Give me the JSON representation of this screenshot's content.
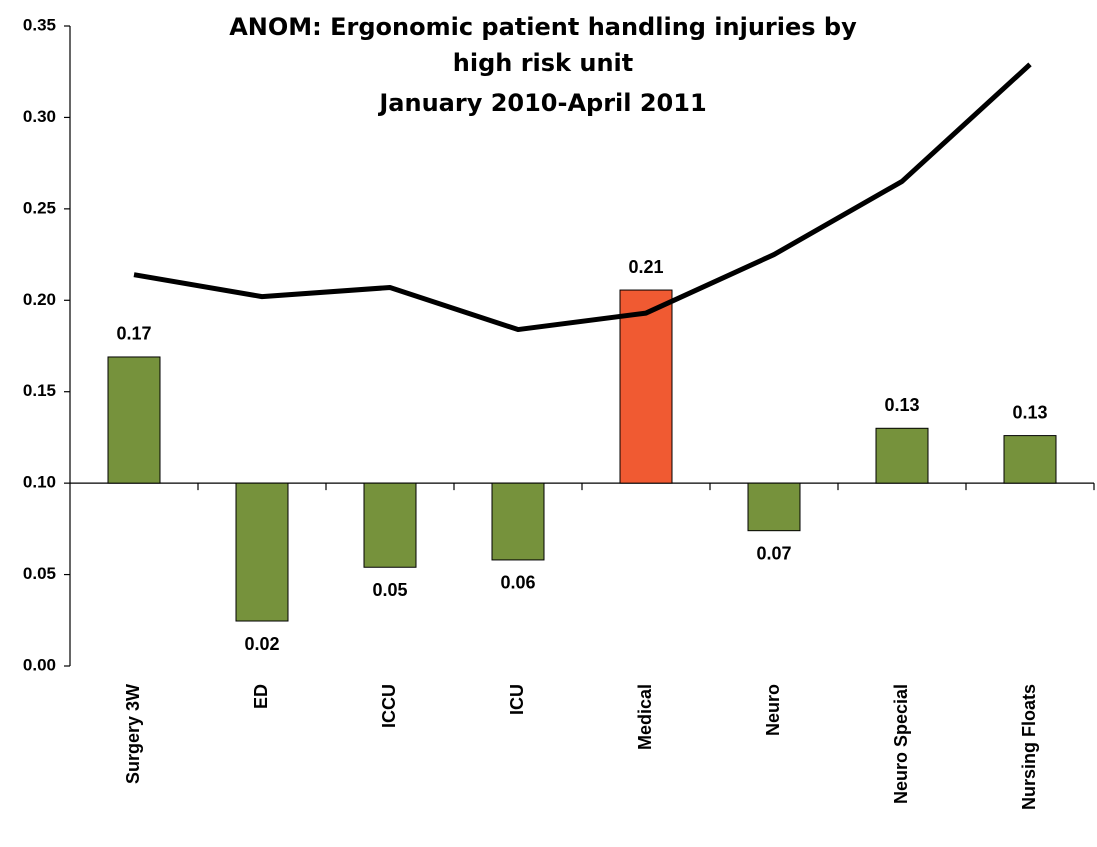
{
  "chart_data": {
    "type": "bar",
    "title": [
      "ANOM:  Ergonomic patient handling injuries by",
      "high risk unit",
      "January 2010-April 2011"
    ],
    "categories": [
      "Surgery 3W",
      "ED",
      "ICCU",
      "ICU",
      "Medical",
      "Neuro",
      "Neuro Special",
      "Nursing Floats"
    ],
    "values": [
      0.169,
      0.0246,
      0.054,
      0.058,
      0.2056,
      0.074,
      0.13,
      0.126
    ],
    "value_labels": [
      "0.17",
      "0.02",
      "0.05",
      "0.06",
      "0.21",
      "0.07",
      "0.13",
      "0.13"
    ],
    "colors": [
      "#76923c",
      "#76923c",
      "#76923c",
      "#76923c",
      "#f05a32",
      "#76923c",
      "#76923c",
      "#76923c"
    ],
    "x_axis_crosses": 0.1,
    "line": {
      "color": "#000000",
      "values": [
        0.214,
        0.202,
        0.207,
        0.184,
        0.193,
        0.225,
        0.265,
        0.329
      ]
    },
    "ylim": [
      0,
      0.35
    ],
    "yticks": [
      {
        "value": 0,
        "label": "0.00"
      },
      0.05,
      {
        "value": 0.1,
        "label": "0.10"
      },
      0.15,
      {
        "value": 0.2,
        "label": "0.20"
      },
      0.25,
      {
        "value": 0.3,
        "label": "0.30"
      },
      0.35
    ]
  }
}
